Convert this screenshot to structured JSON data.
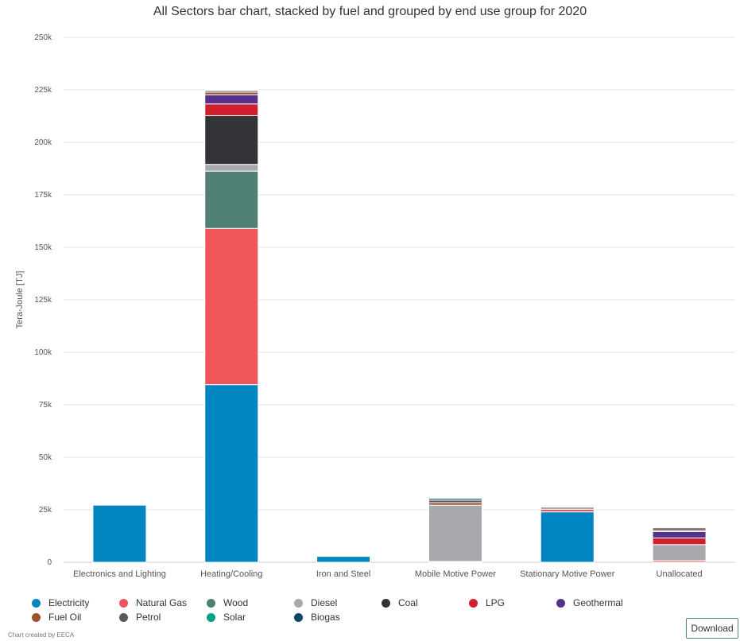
{
  "chart_data": {
    "type": "bar",
    "stacked": true,
    "title": "All Sectors bar chart, stacked by fuel and grouped by end use group for 2020",
    "ylabel": "Tera-Joule [TJ]",
    "xlabel": "",
    "ylim": [
      0,
      250000
    ],
    "yticks": [
      0,
      25000,
      50000,
      75000,
      100000,
      125000,
      150000,
      175000,
      200000,
      225000,
      250000
    ],
    "ytick_labels": [
      "0",
      "25k",
      "50k",
      "75k",
      "100k",
      "125k",
      "150k",
      "175k",
      "200k",
      "225k",
      "250k"
    ],
    "grid": true,
    "legend_position": "bottom",
    "categories": [
      "Electronics and Lighting",
      "Heating/Cooling",
      "Iron and Steel",
      "Mobile Motive Power",
      "Stationary Motive Power",
      "Unallocated"
    ],
    "series": [
      {
        "name": "Electricity",
        "color": "#0085c1",
        "values": [
          27200,
          84600,
          2800,
          400,
          24000,
          0
        ]
      },
      {
        "name": "Natural Gas",
        "color": "#f05559",
        "values": [
          0,
          74400,
          0,
          0,
          1200,
          800
        ]
      },
      {
        "name": "Wood",
        "color": "#4f7f75",
        "values": [
          0,
          27300,
          0,
          0,
          0,
          0
        ]
      },
      {
        "name": "Diesel",
        "color": "#a7a9ac",
        "values": [
          0,
          3200,
          0,
          26800,
          1200,
          7600
        ]
      },
      {
        "name": "Coal",
        "color": "#333438",
        "values": [
          0,
          23200,
          0,
          0,
          0,
          0
        ]
      },
      {
        "name": "LPG",
        "color": "#d0202e",
        "values": [
          0,
          5600,
          0,
          0,
          300,
          3200
        ]
      },
      {
        "name": "Geothermal",
        "color": "#55308d",
        "values": [
          0,
          4400,
          0,
          0,
          0,
          3000
        ]
      },
      {
        "name": "Fuel Oil",
        "color": "#a0522d",
        "values": [
          0,
          1200,
          0,
          1200,
          0,
          600
        ]
      },
      {
        "name": "Petrol",
        "color": "#58595b",
        "values": [
          0,
          800,
          0,
          1200,
          200,
          1200
        ]
      },
      {
        "name": "Solar",
        "color": "#00a18a",
        "values": [
          0,
          300,
          0,
          0,
          0,
          0
        ]
      },
      {
        "name": "Biogas",
        "color": "#0a4a63",
        "values": [
          0,
          300,
          0,
          800,
          0,
          400
        ]
      }
    ]
  },
  "credits": "Chart created by EECA",
  "download_label": "Download"
}
